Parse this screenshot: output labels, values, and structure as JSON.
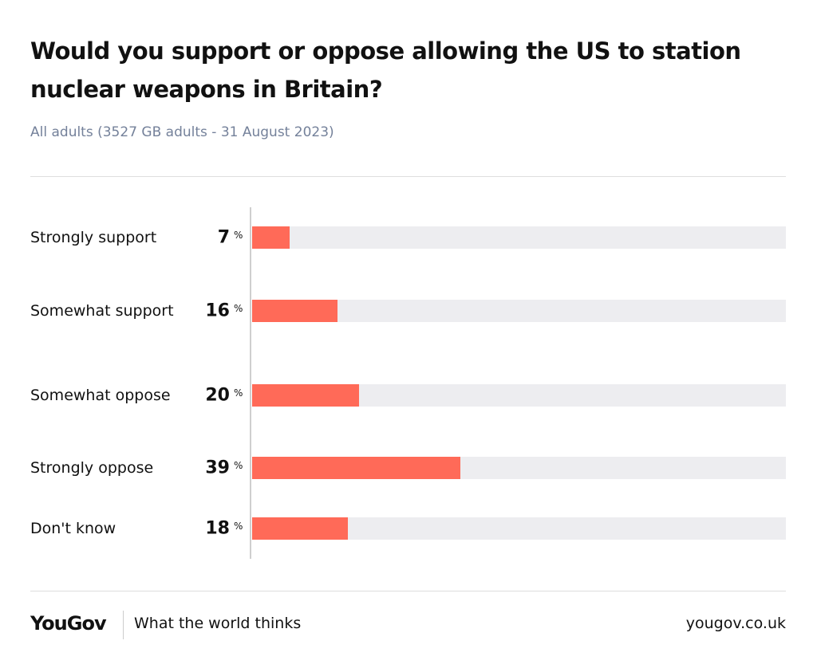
{
  "chart_data": {
    "type": "bar",
    "orientation": "horizontal",
    "title": "Would you support or oppose allowing the US to station nuclear weapons in Britain?",
    "subtitle": "All adults (3527 GB adults - 31 August 2023)",
    "categories": [
      "Strongly support",
      "Somewhat support",
      "Somewhat oppose",
      "Strongly oppose",
      "Don't know"
    ],
    "values": [
      7,
      16,
      20,
      39,
      18
    ],
    "unit": "%",
    "xlim": [
      0,
      100
    ],
    "color": "#ff6a58",
    "track_color": "#ededf0"
  },
  "footer": {
    "logo": "YouGov",
    "tagline": "What the world thinks",
    "url": "yougov.co.uk"
  }
}
